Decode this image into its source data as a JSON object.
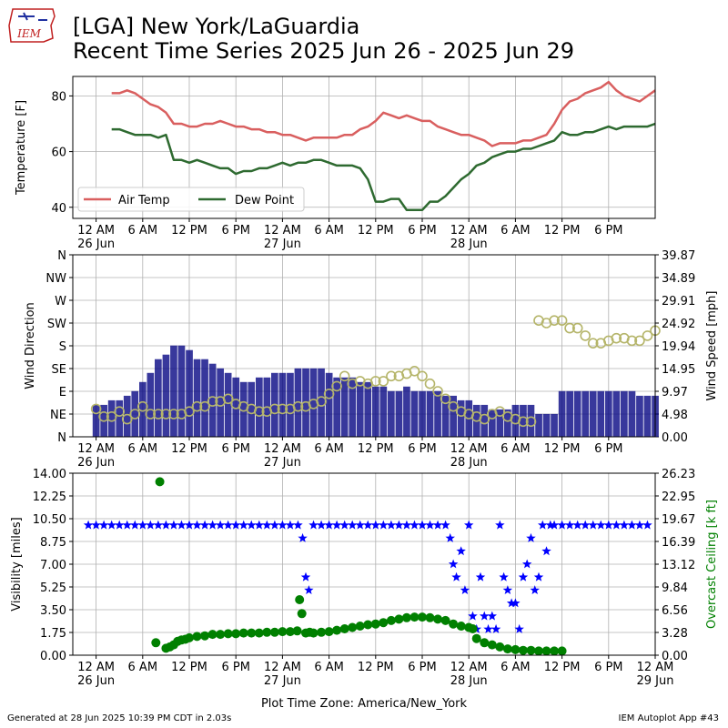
{
  "header": {
    "logo_text": "IEM",
    "title_line1": "[LGA] New York/LaGuardia",
    "title_line2": "Recent Time Series 2025 Jun 26 - 2025 Jun 29"
  },
  "footer": {
    "generated": "Generated at 28 Jun 2025 10:39 PM CDT in 2.03s",
    "app": "IEM Autoplot App #43"
  },
  "colors": {
    "air_temp": "#d95f5f",
    "dew_point": "#2e6a30",
    "wind_bars": "#000080",
    "wind_dir": "#b5b56a",
    "visibility": "#0000ff",
    "ceiling": "#008000",
    "grid": "#b0b0b0"
  },
  "chart_data": [
    {
      "type": "line",
      "panel": "temperature",
      "ylabel": "Temperature [F]",
      "ylim": [
        36,
        87
      ],
      "yticks": [
        40,
        60,
        80
      ],
      "xlim_hours": [
        -3,
        72
      ],
      "xtick_labels": [
        "12 AM\n26 Jun",
        "6 AM",
        "12 PM",
        "6 PM",
        "12 AM\n27 Jun",
        "6 AM",
        "12 PM",
        "6 PM",
        "12 AM\n28 Jun",
        "6 AM",
        "12 PM",
        "6 PM"
      ],
      "grid": true,
      "legend_position": "lower-left",
      "series": [
        {
          "name": "Air Temp",
          "x": [
            2,
            3,
            4,
            5,
            6,
            7,
            8,
            9,
            10,
            11,
            12,
            13,
            14,
            15,
            16,
            17,
            18,
            19,
            20,
            21,
            22,
            23,
            24,
            25,
            26,
            27,
            28,
            29,
            30,
            31,
            32,
            33,
            34,
            35,
            36,
            37,
            38,
            39,
            40,
            41,
            42,
            43,
            44,
            45,
            46,
            47,
            48,
            49,
            50,
            51,
            52,
            53,
            54,
            55,
            56,
            57,
            58,
            59,
            60,
            61,
            62,
            63,
            64,
            65,
            66,
            67,
            68,
            69,
            70,
            71,
            72
          ],
          "values": [
            81,
            81,
            82,
            81,
            79,
            77,
            76,
            74,
            70,
            70,
            69,
            69,
            70,
            70,
            71,
            70,
            69,
            69,
            68,
            68,
            67,
            67,
            66,
            66,
            65,
            64,
            65,
            65,
            65,
            65,
            66,
            66,
            68,
            69,
            71,
            74,
            73,
            72,
            73,
            72,
            71,
            71,
            69,
            68,
            67,
            66,
            66,
            65,
            64,
            62,
            63,
            63,
            63,
            64,
            64,
            65,
            66,
            70,
            75,
            78,
            79,
            81,
            82,
            83,
            85,
            82,
            80,
            79,
            78,
            80,
            82
          ]
        },
        {
          "name": "Dew Point",
          "x": [
            2,
            3,
            4,
            5,
            6,
            7,
            8,
            9,
            10,
            11,
            12,
            13,
            14,
            15,
            16,
            17,
            18,
            19,
            20,
            21,
            22,
            23,
            24,
            25,
            26,
            27,
            28,
            29,
            30,
            31,
            32,
            33,
            34,
            35,
            36,
            37,
            38,
            39,
            40,
            41,
            42,
            43,
            44,
            45,
            46,
            47,
            48,
            49,
            50,
            51,
            52,
            53,
            54,
            55,
            56,
            57,
            58,
            59,
            60,
            61,
            62,
            63,
            64,
            65,
            66,
            67,
            68,
            69,
            70,
            71,
            72
          ],
          "values": [
            68,
            68,
            67,
            66,
            66,
            66,
            65,
            66,
            57,
            57,
            56,
            57,
            56,
            55,
            54,
            54,
            52,
            53,
            53,
            54,
            54,
            55,
            56,
            55,
            56,
            56,
            57,
            57,
            56,
            55,
            55,
            55,
            54,
            50,
            42,
            42,
            43,
            43,
            39,
            39,
            39,
            42,
            42,
            44,
            47,
            50,
            52,
            55,
            56,
            58,
            59,
            60,
            60,
            61,
            61,
            62,
            63,
            64,
            67,
            66,
            66,
            67,
            67,
            68,
            69,
            68,
            69,
            69,
            69,
            69,
            70
          ]
        }
      ]
    },
    {
      "type": "bar",
      "panel": "wind",
      "ylabel": "Wind Direction",
      "y_ticklabels": [
        "N",
        "NE",
        "E",
        "SE",
        "S",
        "SW",
        "W",
        "NW",
        "N"
      ],
      "ylim_deg": [
        0,
        360
      ],
      "y2label": "Wind Speed [mph]",
      "y2_ticklabels": [
        "0.00",
        "4.98",
        "9.97",
        "14.95",
        "19.94",
        "24.92",
        "29.91",
        "34.89",
        "39.87"
      ],
      "ylim_mph": [
        0,
        39.87
      ],
      "xlim_hours": [
        -3,
        72
      ],
      "xtick_labels": [
        "12 AM\n26 Jun",
        "6 AM",
        "12 PM",
        "6 PM",
        "12 AM\n27 Jun",
        "6 AM",
        "12 PM",
        "6 PM",
        "12 AM\n28 Jun",
        "6 AM",
        "12 PM",
        "6 PM"
      ],
      "grid": true,
      "series": [
        {
          "name": "Wind Speed",
          "hour": [
            0,
            1,
            2,
            3,
            4,
            5,
            6,
            7,
            8,
            9,
            10,
            11,
            12,
            13,
            14,
            15,
            16,
            17,
            18,
            19,
            20,
            21,
            22,
            23,
            24,
            25,
            26,
            27,
            28,
            29,
            30,
            31,
            32,
            33,
            34,
            35,
            36,
            37,
            38,
            39,
            40,
            41,
            42,
            43,
            44,
            45,
            46,
            47,
            48,
            49,
            50,
            51,
            52,
            53,
            54,
            55,
            56,
            57,
            58,
            59,
            60,
            61,
            62,
            63,
            64,
            65,
            66,
            67,
            68,
            69,
            70,
            71,
            72
          ],
          "values": [
            7,
            7,
            8,
            8,
            9,
            10,
            12,
            14,
            17,
            18,
            20,
            20,
            19,
            17,
            17,
            16,
            15,
            14,
            13,
            12,
            12,
            13,
            13,
            14,
            14,
            14,
            15,
            15,
            15,
            15,
            14,
            13,
            13,
            13,
            12,
            12,
            11,
            11,
            10,
            10,
            11,
            10,
            10,
            10,
            10,
            9,
            9,
            8,
            8,
            7,
            7,
            6,
            6,
            6,
            7,
            7,
            7,
            5,
            5,
            5,
            10,
            10,
            10,
            10,
            10,
            10,
            10,
            10,
            10,
            10,
            9,
            9,
            9
          ]
        },
        {
          "name": "Wind Direction",
          "hour": [
            0,
            1,
            2,
            3,
            4,
            5,
            6,
            7,
            8,
            9,
            10,
            11,
            12,
            13,
            14,
            15,
            16,
            17,
            18,
            19,
            20,
            21,
            22,
            23,
            24,
            25,
            26,
            27,
            28,
            29,
            30,
            31,
            32,
            33,
            34,
            35,
            36,
            37,
            38,
            39,
            40,
            41,
            42,
            43,
            44,
            45,
            46,
            47,
            48,
            49,
            50,
            51,
            52,
            53,
            54,
            55,
            56,
            57,
            58,
            59,
            60,
            61,
            62,
            63,
            64,
            65,
            66,
            67,
            68,
            69,
            70,
            71,
            72
          ],
          "degrees": [
            55,
            40,
            40,
            50,
            35,
            45,
            60,
            45,
            45,
            45,
            45,
            45,
            50,
            60,
            60,
            70,
            70,
            75,
            65,
            60,
            55,
            50,
            50,
            55,
            55,
            55,
            60,
            60,
            65,
            70,
            85,
            100,
            120,
            105,
            110,
            105,
            110,
            110,
            120,
            120,
            125,
            130,
            120,
            105,
            90,
            75,
            60,
            50,
            45,
            40,
            35,
            45,
            50,
            40,
            35,
            30,
            30,
            230,
            225,
            230,
            230,
            215,
            215,
            200,
            185,
            185,
            190,
            195,
            195,
            190,
            190,
            200,
            210
          ]
        }
      ]
    },
    {
      "type": "scatter",
      "panel": "visibility",
      "ylabel": "Visibility [miles]",
      "yticks": [
        "0.00",
        "1.75",
        "3.50",
        "5.25",
        "7.00",
        "8.75",
        "10.50",
        "12.25",
        "14.00"
      ],
      "ylim": [
        0,
        14
      ],
      "y2label": "Overcast Ceiling [k ft]",
      "y2_ticklabels": [
        "0.00",
        "3.28",
        "6.56",
        "9.84",
        "13.12",
        "16.39",
        "19.67",
        "22.95",
        "26.23"
      ],
      "ylim2": [
        0,
        26.23
      ],
      "xlim_hours": [
        -3,
        72
      ],
      "xtick_labels": [
        "12 AM\n26 Jun",
        "6 AM",
        "12 PM",
        "6 PM",
        "12 AM\n27 Jun",
        "6 AM",
        "12 PM",
        "6 PM",
        "12 AM\n28 Jun",
        "6 AM",
        "12 PM",
        "6 PM",
        "12 AM\n29 Jun"
      ],
      "xlabel": "Plot Time Zone: America/New_York",
      "grid": true,
      "series": [
        {
          "name": "Visibility",
          "marker": "star",
          "hour": [
            -1,
            0,
            1,
            2,
            3,
            4,
            5,
            6,
            7,
            8,
            9,
            10,
            11,
            12,
            13,
            14,
            15,
            16,
            17,
            18,
            19,
            20,
            21,
            22,
            23,
            24,
            25,
            26,
            26.6,
            27,
            27.4,
            28,
            29,
            30,
            31,
            32,
            33,
            34,
            35,
            36,
            37,
            38,
            39,
            40,
            41,
            42,
            43,
            44,
            45,
            45.6,
            46,
            46.4,
            47,
            47.5,
            48,
            48.5,
            49,
            49.5,
            50,
            50.5,
            51,
            51.5,
            52,
            52.5,
            53,
            53.5,
            54,
            54.5,
            55,
            55.5,
            56,
            56.5,
            57,
            57.5,
            58,
            58.5,
            59,
            60,
            61,
            62,
            63,
            64,
            65,
            66,
            67,
            68,
            69,
            70,
            71
          ],
          "values": [
            10,
            10,
            10,
            10,
            10,
            10,
            10,
            10,
            10,
            10,
            10,
            10,
            10,
            10,
            10,
            10,
            10,
            10,
            10,
            10,
            10,
            10,
            10,
            10,
            10,
            10,
            10,
            10,
            9,
            6,
            5,
            10,
            10,
            10,
            10,
            10,
            10,
            10,
            10,
            10,
            10,
            10,
            10,
            10,
            10,
            10,
            10,
            10,
            10,
            9,
            7,
            6,
            8,
            5,
            10,
            3,
            2,
            6,
            3,
            2,
            3,
            2,
            10,
            6,
            5,
            4,
            4,
            2,
            6,
            7,
            9,
            5,
            6,
            10,
            8,
            10,
            10,
            10,
            10,
            10,
            10,
            10,
            10,
            10,
            10,
            10,
            10,
            10,
            10
          ]
        },
        {
          "name": "Overcast Ceiling",
          "marker": "circle",
          "hour": [
            7.7,
            8.2,
            9,
            9.5,
            10,
            10.5,
            11,
            11.5,
            12,
            13,
            14,
            15,
            16,
            17,
            18,
            19,
            20,
            21,
            22,
            23,
            24,
            25,
            25.9,
            26.2,
            26.5,
            27,
            27.5,
            28,
            29,
            30,
            31,
            32,
            33,
            34,
            35,
            36,
            37,
            38,
            39,
            40,
            41,
            42,
            43,
            44,
            45,
            46,
            47,
            48,
            48.5,
            49,
            50,
            51,
            52,
            53,
            54,
            55,
            56,
            57,
            58,
            59,
            60
          ],
          "values": [
            1.8,
            25,
            1,
            1.2,
            1.5,
            2,
            2.2,
            2.3,
            2.5,
            2.7,
            2.8,
            3,
            3,
            3.1,
            3.1,
            3.2,
            3.2,
            3.2,
            3.3,
            3.3,
            3.4,
            3.4,
            3.5,
            8,
            6,
            3.2,
            3.3,
            3.2,
            3.3,
            3.4,
            3.6,
            3.8,
            4,
            4.2,
            4.4,
            4.5,
            4.7,
            5,
            5.2,
            5.4,
            5.5,
            5.5,
            5.4,
            5.2,
            5,
            4.5,
            4.2,
            4,
            3.8,
            2.4,
            1.8,
            1.5,
            1.2,
            0.9,
            0.8,
            0.7,
            0.7,
            0.6,
            0.6,
            0.6,
            0.6
          ]
        }
      ]
    }
  ]
}
